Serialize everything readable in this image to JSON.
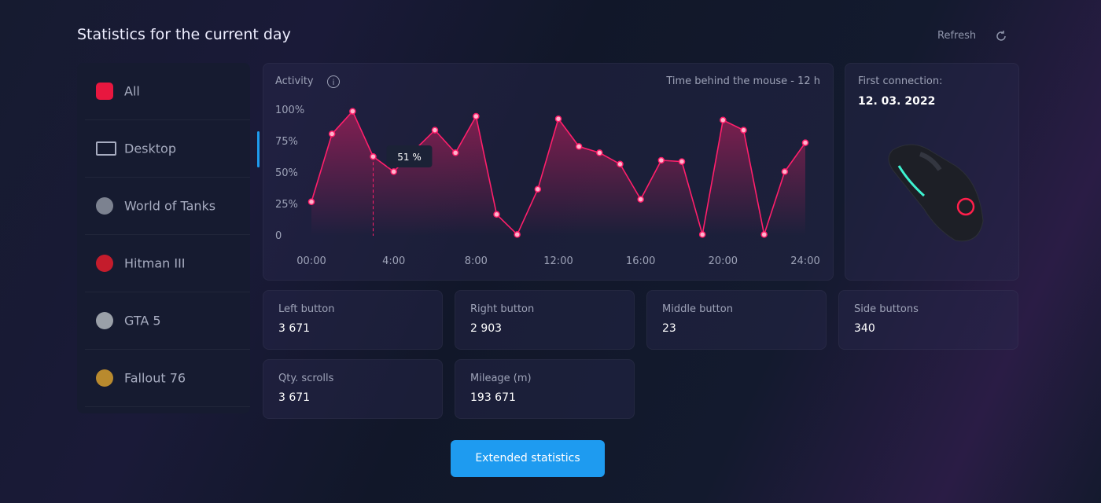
{
  "header": {
    "title": "Statistics for the current day",
    "refresh": "Refresh"
  },
  "sidebar": {
    "items": [
      "All",
      "Desktop",
      "World of Tanks",
      "Hitman III",
      "GTA 5",
      "Fallout 76"
    ]
  },
  "activity": {
    "title": "Activity",
    "note": "Time behind the mouse - 12 h",
    "chart_data": {
      "type": "line",
      "color": "#ff1f6b",
      "annotation": "51 %",
      "x": [
        0,
        1,
        2,
        3,
        4,
        5,
        6,
        7,
        8,
        9,
        10,
        11,
        12,
        13,
        14,
        15,
        16,
        17,
        18,
        19,
        20,
        21,
        22,
        23,
        24
      ],
      "values": [
        27,
        81,
        99,
        63,
        51,
        68,
        84,
        66,
        95,
        17,
        1,
        37,
        93,
        71,
        66,
        57,
        29,
        60,
        59,
        1,
        92,
        84,
        1,
        51,
        74
      ],
      "xlim": [
        0,
        24
      ],
      "xticks": [
        {
          "value": 0,
          "label": "00:00"
        },
        {
          "value": 4,
          "label": "4:00"
        },
        {
          "value": 8,
          "label": "8:00"
        },
        {
          "value": 12,
          "label": "12:00"
        },
        {
          "value": 16,
          "label": "16:00"
        },
        {
          "value": 20,
          "label": "20:00"
        },
        {
          "value": 24,
          "label": "24:00"
        }
      ],
      "ylim": [
        0,
        100
      ],
      "yticks": [
        0,
        {
          "value": 25,
          "label": "25%"
        },
        {
          "value": 50,
          "label": "50%"
        },
        {
          "value": 75,
          "label": "75%"
        },
        {
          "value": 100,
          "label": "100%"
        }
      ]
    }
  },
  "device": {
    "label": "First connection:",
    "date": "12. 03. 2022"
  },
  "stats": [
    {
      "label": "Left button",
      "value": "3 671"
    },
    {
      "label": "Right button",
      "value": "2 903"
    },
    {
      "label": "Middle button",
      "value": "23"
    },
    {
      "label": "Side buttons",
      "value": "340"
    },
    {
      "label": "Qty. scrolls",
      "value": "3 671"
    },
    {
      "label": "Mileage (m)",
      "value": "193 671"
    }
  ],
  "button": "Extended statistics"
}
